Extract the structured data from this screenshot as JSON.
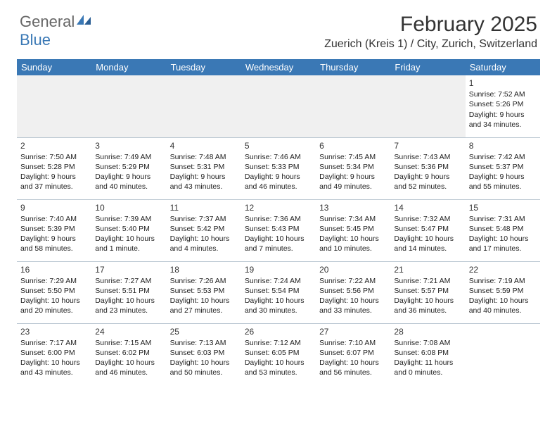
{
  "logo": {
    "text_gray": "General",
    "text_blue": "Blue"
  },
  "title": "February 2025",
  "location": "Zuerich (Kreis 1) / City, Zurich, Switzerland",
  "colors": {
    "header_bg": "#3a78b5",
    "header_text": "#ffffff",
    "empty_row_bg": "#f0f0f0",
    "border": "#b8c5d0",
    "logo_gray": "#666666",
    "logo_blue": "#3a78b5"
  },
  "dayHeaders": [
    "Sunday",
    "Monday",
    "Tuesday",
    "Wednesday",
    "Thursday",
    "Friday",
    "Saturday"
  ],
  "weeks": [
    [
      null,
      null,
      null,
      null,
      null,
      null,
      {
        "n": "1",
        "sunrise": "7:52 AM",
        "sunset": "5:26 PM",
        "daylight": "9 hours and 34 minutes."
      }
    ],
    [
      {
        "n": "2",
        "sunrise": "7:50 AM",
        "sunset": "5:28 PM",
        "daylight": "9 hours and 37 minutes."
      },
      {
        "n": "3",
        "sunrise": "7:49 AM",
        "sunset": "5:29 PM",
        "daylight": "9 hours and 40 minutes."
      },
      {
        "n": "4",
        "sunrise": "7:48 AM",
        "sunset": "5:31 PM",
        "daylight": "9 hours and 43 minutes."
      },
      {
        "n": "5",
        "sunrise": "7:46 AM",
        "sunset": "5:33 PM",
        "daylight": "9 hours and 46 minutes."
      },
      {
        "n": "6",
        "sunrise": "7:45 AM",
        "sunset": "5:34 PM",
        "daylight": "9 hours and 49 minutes."
      },
      {
        "n": "7",
        "sunrise": "7:43 AM",
        "sunset": "5:36 PM",
        "daylight": "9 hours and 52 minutes."
      },
      {
        "n": "8",
        "sunrise": "7:42 AM",
        "sunset": "5:37 PM",
        "daylight": "9 hours and 55 minutes."
      }
    ],
    [
      {
        "n": "9",
        "sunrise": "7:40 AM",
        "sunset": "5:39 PM",
        "daylight": "9 hours and 58 minutes."
      },
      {
        "n": "10",
        "sunrise": "7:39 AM",
        "sunset": "5:40 PM",
        "daylight": "10 hours and 1 minute."
      },
      {
        "n": "11",
        "sunrise": "7:37 AM",
        "sunset": "5:42 PM",
        "daylight": "10 hours and 4 minutes."
      },
      {
        "n": "12",
        "sunrise": "7:36 AM",
        "sunset": "5:43 PM",
        "daylight": "10 hours and 7 minutes."
      },
      {
        "n": "13",
        "sunrise": "7:34 AM",
        "sunset": "5:45 PM",
        "daylight": "10 hours and 10 minutes."
      },
      {
        "n": "14",
        "sunrise": "7:32 AM",
        "sunset": "5:47 PM",
        "daylight": "10 hours and 14 minutes."
      },
      {
        "n": "15",
        "sunrise": "7:31 AM",
        "sunset": "5:48 PM",
        "daylight": "10 hours and 17 minutes."
      }
    ],
    [
      {
        "n": "16",
        "sunrise": "7:29 AM",
        "sunset": "5:50 PM",
        "daylight": "10 hours and 20 minutes."
      },
      {
        "n": "17",
        "sunrise": "7:27 AM",
        "sunset": "5:51 PM",
        "daylight": "10 hours and 23 minutes."
      },
      {
        "n": "18",
        "sunrise": "7:26 AM",
        "sunset": "5:53 PM",
        "daylight": "10 hours and 27 minutes."
      },
      {
        "n": "19",
        "sunrise": "7:24 AM",
        "sunset": "5:54 PM",
        "daylight": "10 hours and 30 minutes."
      },
      {
        "n": "20",
        "sunrise": "7:22 AM",
        "sunset": "5:56 PM",
        "daylight": "10 hours and 33 minutes."
      },
      {
        "n": "21",
        "sunrise": "7:21 AM",
        "sunset": "5:57 PM",
        "daylight": "10 hours and 36 minutes."
      },
      {
        "n": "22",
        "sunrise": "7:19 AM",
        "sunset": "5:59 PM",
        "daylight": "10 hours and 40 minutes."
      }
    ],
    [
      {
        "n": "23",
        "sunrise": "7:17 AM",
        "sunset": "6:00 PM",
        "daylight": "10 hours and 43 minutes."
      },
      {
        "n": "24",
        "sunrise": "7:15 AM",
        "sunset": "6:02 PM",
        "daylight": "10 hours and 46 minutes."
      },
      {
        "n": "25",
        "sunrise": "7:13 AM",
        "sunset": "6:03 PM",
        "daylight": "10 hours and 50 minutes."
      },
      {
        "n": "26",
        "sunrise": "7:12 AM",
        "sunset": "6:05 PM",
        "daylight": "10 hours and 53 minutes."
      },
      {
        "n": "27",
        "sunrise": "7:10 AM",
        "sunset": "6:07 PM",
        "daylight": "10 hours and 56 minutes."
      },
      {
        "n": "28",
        "sunrise": "7:08 AM",
        "sunset": "6:08 PM",
        "daylight": "11 hours and 0 minutes."
      },
      null
    ]
  ]
}
